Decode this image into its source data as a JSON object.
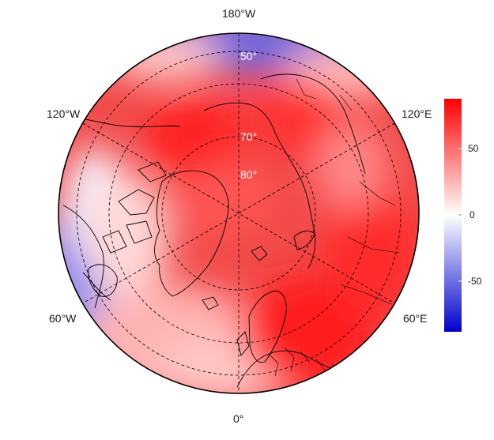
{
  "map": {
    "projection": "north-polar-stereographic",
    "longitude_labels": {
      "top": "180°W",
      "upper_left": "120°W",
      "upper_right": "120°E",
      "lower_left": "60°W",
      "lower_right": "60°E",
      "bottom": "0°"
    },
    "latitude_labels": [
      "50°",
      "70°",
      "80°"
    ],
    "graticule_style": "dashed",
    "field_description_colors": {
      "positive": "#ff0000",
      "neutral": "#ffffff",
      "negative": "#0000dd"
    }
  },
  "colorbar": {
    "min": -88,
    "max": 88,
    "ticks": [
      "50",
      "0",
      "-50"
    ],
    "colors": [
      "#0000cc",
      "#ffffff",
      "#ff0000"
    ]
  }
}
